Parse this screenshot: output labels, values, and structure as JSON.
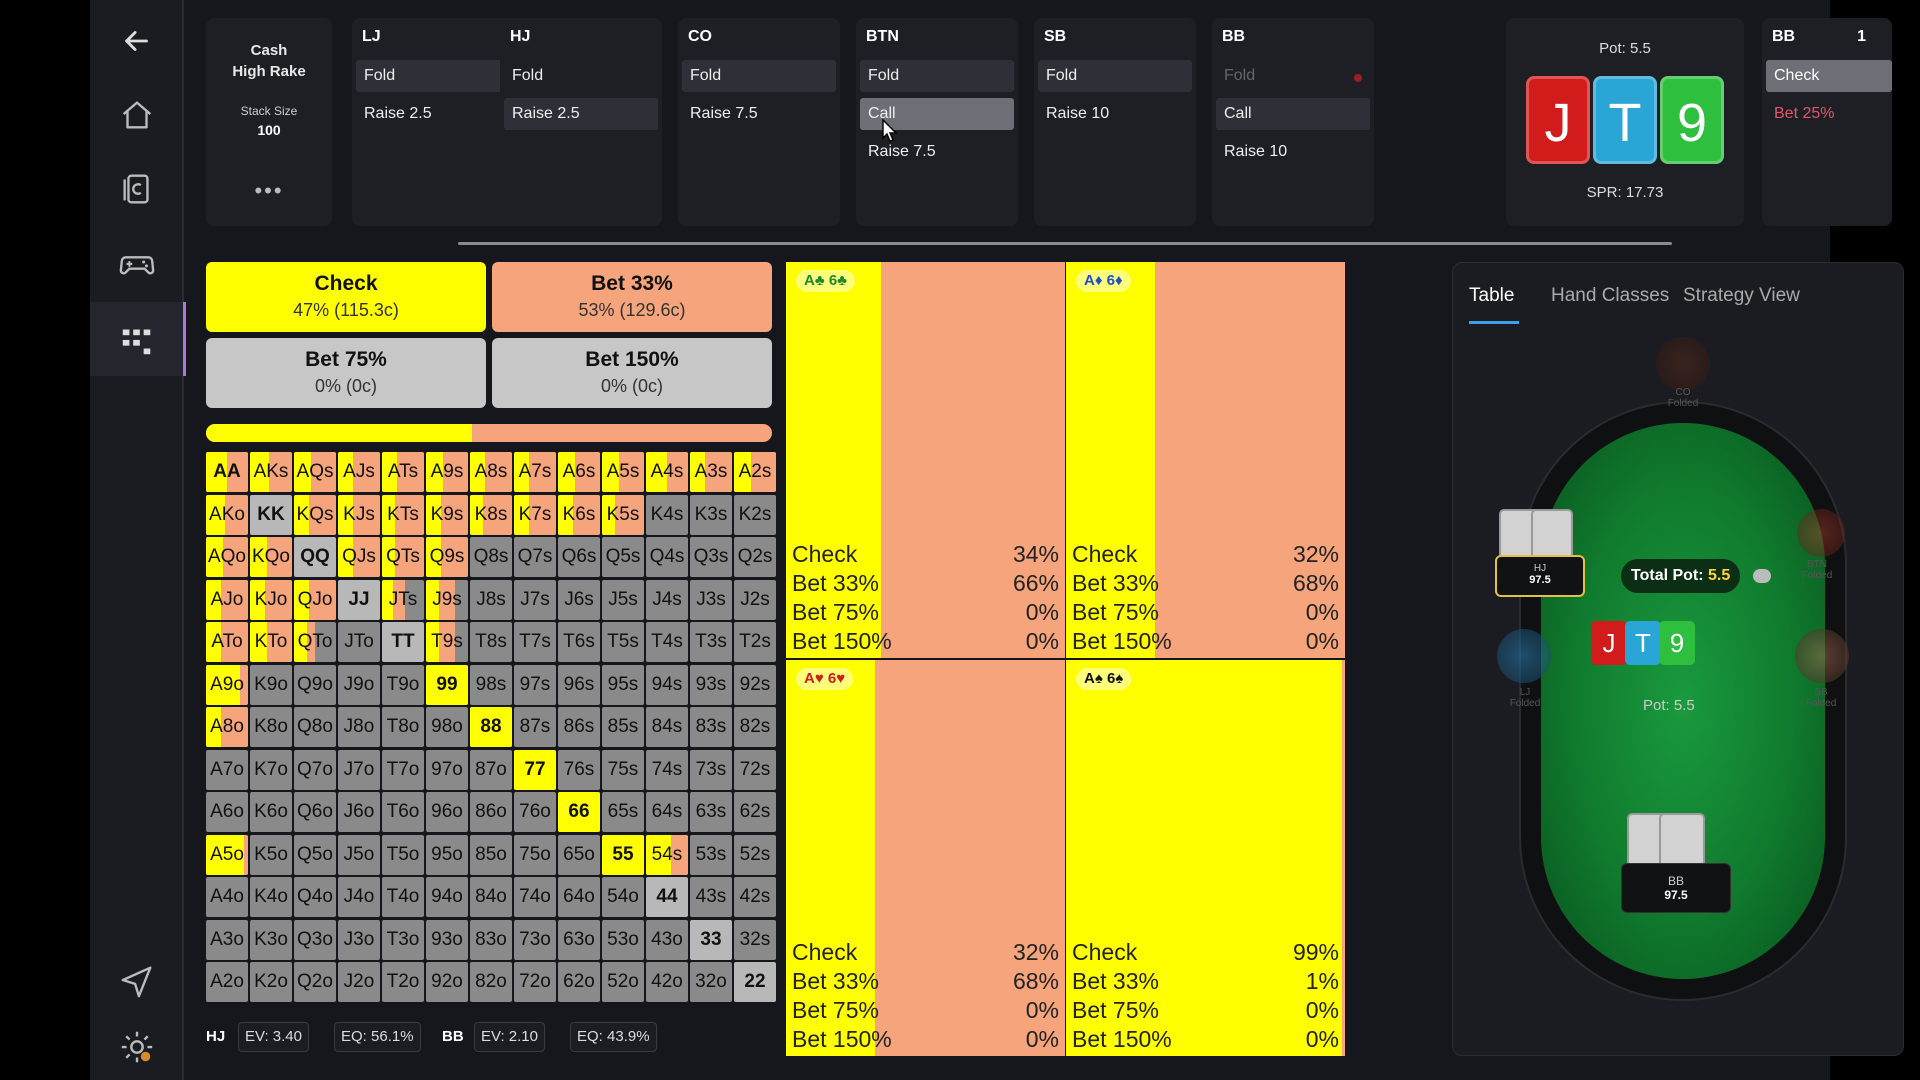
{
  "nav": {
    "items": [
      {
        "name": "back-arrow-icon"
      },
      {
        "name": "home-icon"
      },
      {
        "name": "cards-icon"
      },
      {
        "name": "gamepad-icon"
      },
      {
        "name": "grid-icon"
      },
      {
        "name": "send-icon"
      },
      {
        "name": "settings-icon"
      }
    ]
  },
  "game": {
    "type_line1": "Cash",
    "type_line2": "High Rake",
    "stack_label": "Stack Size",
    "stack_value": "100",
    "more": "•••"
  },
  "positions": [
    {
      "name": "LJ",
      "actions": [
        "Fold",
        "Raise 2.5"
      ],
      "selected": 0
    },
    {
      "name": "HJ",
      "actions": [
        "Fold",
        "Raise 2.5"
      ],
      "selected": 1
    },
    {
      "name": "CO",
      "actions": [
        "Fold",
        "Raise 7.5"
      ],
      "selected": 0
    },
    {
      "name": "BTN",
      "actions": [
        "Fold",
        "Call",
        "Raise 7.5"
      ],
      "selected": 0,
      "highlighted": 1
    },
    {
      "name": "SB",
      "actions": [
        "Fold",
        "Raise 10"
      ],
      "selected": 0
    },
    {
      "name": "BB",
      "actions": [
        "Fold",
        "Call",
        "Raise 10"
      ],
      "selected": 1
    }
  ],
  "board": {
    "pot_label": "Pot: 5.5",
    "spr_label": "SPR: 17.73",
    "cards": [
      {
        "rank": "J",
        "color": "#d21c1c"
      },
      {
        "rank": "T",
        "color": "#2aa6d6"
      },
      {
        "rank": "9",
        "color": "#2fbf3f"
      }
    ]
  },
  "current": {
    "position": "BB",
    "extra": "1",
    "actions": [
      "Check",
      "Bet 25%"
    ]
  },
  "strategy": {
    "options": [
      {
        "name": "Check",
        "value": "47% (115.3c)",
        "color": "#ffff00"
      },
      {
        "name": "Bet 33%",
        "value": "53% (129.6c)",
        "color": "#f5a47c"
      },
      {
        "name": "Bet 75%",
        "value": "0% (0c)",
        "color": "#c7c7c7"
      },
      {
        "name": "Bet 150%",
        "value": "0% (0c)",
        "color": "#c7c7c7"
      }
    ],
    "check_share": 0.47
  },
  "colors": {
    "check": "#ffff00",
    "bet33": "#f5a47c",
    "none": "#8a8a8a"
  },
  "range": {
    "ranks": [
      "A",
      "K",
      "Q",
      "J",
      "T",
      "9",
      "8",
      "7",
      "6",
      "5",
      "4",
      "3",
      "2"
    ],
    "check_frac": [
      [
        0.5,
        0.45,
        0.4,
        0.35,
        0.35,
        0.4,
        0.35,
        0.35,
        0.4,
        0.4,
        0.5,
        0.35,
        0.4
      ],
      [
        0.45,
        0.0,
        0.35,
        0.35,
        0.3,
        0.35,
        0.3,
        0.35,
        0.35,
        0.3,
        0.0,
        0.0,
        0.0
      ],
      [
        0.4,
        0.4,
        0.0,
        0.35,
        0.3,
        0.35,
        0.0,
        0.0,
        0.0,
        0.0,
        0.0,
        0.0,
        0.0
      ],
      [
        0.35,
        0.35,
        0.35,
        0.0,
        0.25,
        0.3,
        0.0,
        0.0,
        0.0,
        0.0,
        0.0,
        0.0,
        0.0
      ],
      [
        0.35,
        0.4,
        0.3,
        0.0,
        0.0,
        0.3,
        0.0,
        0.0,
        0.0,
        0.0,
        0.0,
        0.0,
        0.0
      ],
      [
        0.8,
        0.0,
        0.0,
        0.0,
        0.0,
        1.0,
        0.0,
        0.0,
        0.0,
        0.0,
        0.0,
        0.0,
        0.0
      ],
      [
        0.35,
        0.0,
        0.0,
        0.0,
        0.0,
        0.0,
        1.0,
        0.0,
        0.0,
        0.0,
        0.0,
        0.0,
        0.0
      ],
      [
        0.0,
        0.0,
        0.0,
        0.0,
        0.0,
        0.0,
        0.0,
        1.0,
        0.0,
        0.0,
        0.0,
        0.0,
        0.0
      ],
      [
        0.0,
        0.0,
        0.0,
        0.0,
        0.0,
        0.0,
        0.0,
        0.0,
        1.0,
        0.0,
        0.0,
        0.0,
        0.0
      ],
      [
        0.9,
        0.0,
        0.0,
        0.0,
        0.0,
        0.0,
        0.0,
        0.0,
        0.0,
        1.0,
        0.6,
        0.0,
        0.0
      ],
      [
        0.0,
        0.0,
        0.0,
        0.0,
        0.0,
        0.0,
        0.0,
        0.0,
        0.0,
        0.0,
        0.0,
        0.0,
        0.0
      ],
      [
        0.0,
        0.0,
        0.0,
        0.0,
        0.0,
        0.0,
        0.0,
        0.0,
        0.0,
        0.0,
        0.0,
        0.0,
        0.0
      ],
      [
        0.0,
        0.0,
        0.0,
        0.0,
        0.0,
        0.0,
        0.0,
        0.0,
        0.0,
        0.0,
        0.0,
        0.0,
        0.0
      ]
    ],
    "bet_frac": [
      [
        0.5,
        0.55,
        0.6,
        0.65,
        0.65,
        0.6,
        0.65,
        0.65,
        0.6,
        0.6,
        0.5,
        0.65,
        0.6
      ],
      [
        0.55,
        0.0,
        0.65,
        0.65,
        0.7,
        0.65,
        0.7,
        0.65,
        0.65,
        0.7,
        0.0,
        0.0,
        0.0
      ],
      [
        0.6,
        0.6,
        0.0,
        0.65,
        0.7,
        0.65,
        0.0,
        0.0,
        0.0,
        0.0,
        0.0,
        0.0,
        0.0
      ],
      [
        0.65,
        0.65,
        0.65,
        0.0,
        0.3,
        0.4,
        0.0,
        0.0,
        0.0,
        0.0,
        0.0,
        0.0,
        0.0
      ],
      [
        0.65,
        0.6,
        0.2,
        0.0,
        0.0,
        0.4,
        0.0,
        0.0,
        0.0,
        0.0,
        0.0,
        0.0,
        0.0
      ],
      [
        0.2,
        0.0,
        0.0,
        0.0,
        0.0,
        0.0,
        0.0,
        0.0,
        0.0,
        0.0,
        0.0,
        0.0,
        0.0
      ],
      [
        0.65,
        0.0,
        0.0,
        0.0,
        0.0,
        0.0,
        0.0,
        0.0,
        0.0,
        0.0,
        0.0,
        0.0,
        0.0
      ],
      [
        0.0,
        0.0,
        0.0,
        0.0,
        0.0,
        0.0,
        0.0,
        0.0,
        0.0,
        0.0,
        0.0,
        0.0,
        0.0
      ],
      [
        0.0,
        0.0,
        0.0,
        0.0,
        0.0,
        0.0,
        0.0,
        0.0,
        0.2,
        0.0,
        0.0,
        0.0,
        0.0
      ],
      [
        0.1,
        0.0,
        0.0,
        0.0,
        0.0,
        0.0,
        0.0,
        0.0,
        0.0,
        0.0,
        0.4,
        0.0,
        0.0
      ],
      [
        0.0,
        0.0,
        0.0,
        0.0,
        0.0,
        0.0,
        0.0,
        0.0,
        0.0,
        0.0,
        0.0,
        0.0,
        0.0
      ],
      [
        0.0,
        0.0,
        0.0,
        0.0,
        0.0,
        0.0,
        0.0,
        0.0,
        0.0,
        0.0,
        0.0,
        0.0,
        0.0
      ],
      [
        0.0,
        0.0,
        0.0,
        0.0,
        0.0,
        0.0,
        0.0,
        0.0,
        0.0,
        0.0,
        0.0,
        0.0,
        0.0
      ]
    ],
    "bold_pairs": [
      "AA",
      "KK",
      "QQ",
      "JJ",
      "TT",
      "99",
      "88",
      "77",
      "66",
      "55",
      "44",
      "33",
      "22"
    ]
  },
  "ev": {
    "hero": {
      "pos": "HJ",
      "ev": "EV: 3.40",
      "eq": "EQ: 56.1%"
    },
    "villain": {
      "pos": "BB",
      "ev": "EV: 2.10",
      "eq": "EQ: 43.9%"
    }
  },
  "combos": [
    {
      "label": "A♣ 6♣",
      "rows": [
        [
          "Check",
          "34%"
        ],
        [
          "Bet 33%",
          "66%"
        ],
        [
          "Bet 75%",
          "0%"
        ],
        [
          "Bet 150%",
          "0%"
        ]
      ],
      "check_share": 0.34,
      "label_color": "#1e8a2e"
    },
    {
      "label": "A♦ 6♦",
      "rows": [
        [
          "Check",
          "32%"
        ],
        [
          "Bet 33%",
          "68%"
        ],
        [
          "Bet 75%",
          "0%"
        ],
        [
          "Bet 150%",
          "0%"
        ]
      ],
      "check_share": 0.32,
      "label_color": "#1d4fc9"
    },
    {
      "label": "A♥ 6♥",
      "rows": [
        [
          "Check",
          "32%"
        ],
        [
          "Bet 33%",
          "68%"
        ],
        [
          "Bet 75%",
          "0%"
        ],
        [
          "Bet 150%",
          "0%"
        ]
      ],
      "check_share": 0.32,
      "label_color": "#d21c1c"
    },
    {
      "label": "A♠ 6♠",
      "rows": [
        [
          "Check",
          "99%"
        ],
        [
          "Bet 33%",
          "1%"
        ],
        [
          "Bet 75%",
          "0%"
        ],
        [
          "Bet 150%",
          "0%"
        ]
      ],
      "check_share": 0.99,
      "label_color": "#111111"
    }
  ],
  "table_view": {
    "tabs": [
      "Table",
      "Hand Classes",
      "Strategy View"
    ],
    "active_tab": 0,
    "total_pot_label": "Total Pot:",
    "total_pot_value": "5.5",
    "pot_label": "Pot:",
    "pot_value": "5.5",
    "seats": {
      "co": {
        "name": "CO",
        "status": "Folded"
      },
      "btn": {
        "name": "BTN",
        "status": "Folded"
      },
      "lj": {
        "name": "LJ",
        "status": "Folded"
      },
      "sb": {
        "name": "SB",
        "status": "Folded"
      },
      "hj": {
        "name": "HJ",
        "stack": "97.5"
      },
      "bb": {
        "name": "BB",
        "stack": "97.5"
      }
    }
  }
}
